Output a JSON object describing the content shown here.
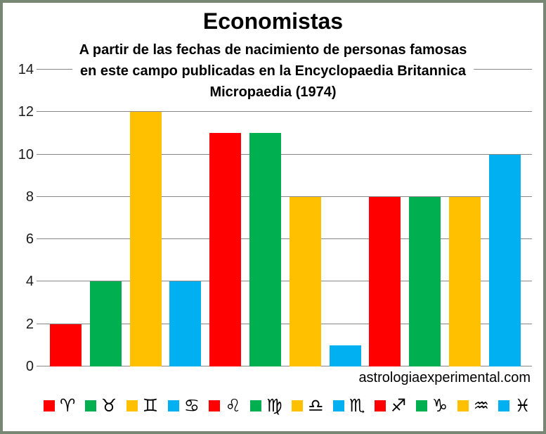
{
  "window": {
    "border_color": "#788773",
    "background": "#ffffff"
  },
  "header": {
    "title": "Economistas",
    "subtitle_lines": [
      "A partir de las fechas de nacimiento de personas famosas",
      "en este campo publicadas en la Encyclopaedia Britannica",
      "Micropaedia (1974)"
    ]
  },
  "watermark": "astrologiaexperimental.com",
  "chart_data": {
    "type": "bar",
    "title": "Economistas",
    "subtitle": "A partir de las fechas de nacimiento de personas famosas en este campo publicadas en la Encyclopaedia Britannica Micropaedia (1974)",
    "categories": [
      {
        "name": "aries",
        "glyph": "♈"
      },
      {
        "name": "tauro",
        "glyph": "♉"
      },
      {
        "name": "geminis",
        "glyph": "♊"
      },
      {
        "name": "cancer",
        "glyph": "♋"
      },
      {
        "name": "leo",
        "glyph": "♌"
      },
      {
        "name": "virgo",
        "glyph": "♍"
      },
      {
        "name": "libra",
        "glyph": "♎"
      },
      {
        "name": "escorpio",
        "glyph": "♏"
      },
      {
        "name": "sagitario",
        "glyph": "♐"
      },
      {
        "name": "capricornio",
        "glyph": "♑"
      },
      {
        "name": "acuario",
        "glyph": "♒"
      },
      {
        "name": "piscis",
        "glyph": "♓"
      }
    ],
    "values": [
      2,
      4,
      12,
      4,
      11,
      11,
      8,
      1,
      8,
      8,
      8,
      10
    ],
    "bar_colors_cycle": [
      "#FF0000",
      "#00B050",
      "#FFC000",
      "#00B0F0"
    ],
    "ylim": [
      0,
      14
    ],
    "yticks": [
      0,
      2,
      4,
      6,
      8,
      10,
      12,
      14
    ],
    "grid": "horizontal",
    "gridline_color": "#878787",
    "legend_position": "bottom",
    "xlabel": "",
    "ylabel": "",
    "watermark": "astrologiaexperimental.com"
  }
}
